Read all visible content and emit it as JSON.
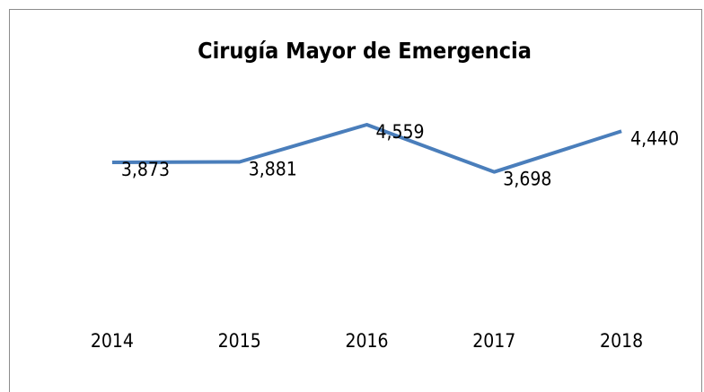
{
  "chart_data": {
    "type": "line",
    "title": "Cirugía Mayor de Emergencia",
    "categories": [
      "2014",
      "2015",
      "2016",
      "2017",
      "2018"
    ],
    "values": [
      3873,
      3881,
      4559,
      3698,
      4440
    ],
    "value_labels": [
      "3,873",
      "3,881",
      "4,559",
      "3,698",
      "4,440"
    ],
    "color": "#4a7ebb",
    "ylim": [
      0,
      5000
    ]
  }
}
